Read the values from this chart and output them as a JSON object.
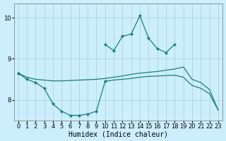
{
  "xlabel": "Humidex (Indice chaleur)",
  "bg_color": "#cceeff",
  "grid_color": "#aacccc",
  "line_color": "#1a7d78",
  "x_values": [
    0,
    1,
    2,
    3,
    4,
    5,
    6,
    7,
    8,
    9,
    10,
    11,
    12,
    13,
    14,
    15,
    16,
    17,
    18,
    19,
    20,
    21,
    22,
    23
  ],
  "line_peak": [
    8.65,
    null,
    null,
    null,
    null,
    null,
    null,
    null,
    null,
    null,
    9.35,
    9.2,
    9.55,
    9.6,
    10.05,
    9.5,
    9.25,
    9.15,
    9.35,
    null,
    null,
    null,
    null,
    null
  ],
  "line_upper": [
    8.65,
    8.55,
    8.5,
    8.48,
    8.46,
    8.46,
    8.47,
    8.48,
    8.49,
    8.5,
    8.52,
    8.55,
    8.58,
    8.62,
    8.65,
    8.67,
    8.69,
    8.72,
    8.75,
    8.8,
    8.5,
    8.42,
    8.25,
    7.75
  ],
  "line_lower": [
    8.65,
    null,
    null,
    null,
    null,
    null,
    null,
    null,
    null,
    null,
    8.45,
    8.48,
    8.5,
    8.52,
    8.55,
    8.57,
    8.58,
    8.59,
    8.6,
    8.55,
    8.35,
    8.28,
    8.15,
    7.75
  ],
  "line_dip": [
    8.65,
    8.5,
    8.42,
    8.28,
    7.9,
    7.72,
    7.62,
    7.62,
    7.65,
    7.72,
    8.45,
    null,
    null,
    null,
    null,
    null,
    null,
    null,
    null,
    null,
    null,
    null,
    null,
    null
  ],
  "ylim": [
    7.5,
    10.35
  ],
  "yticks": [
    8,
    9,
    10
  ],
  "xlim": [
    -0.5,
    23.5
  ],
  "xticks": [
    0,
    1,
    2,
    3,
    4,
    5,
    6,
    7,
    8,
    9,
    10,
    11,
    12,
    13,
    14,
    15,
    16,
    17,
    18,
    19,
    20,
    21,
    22,
    23
  ]
}
